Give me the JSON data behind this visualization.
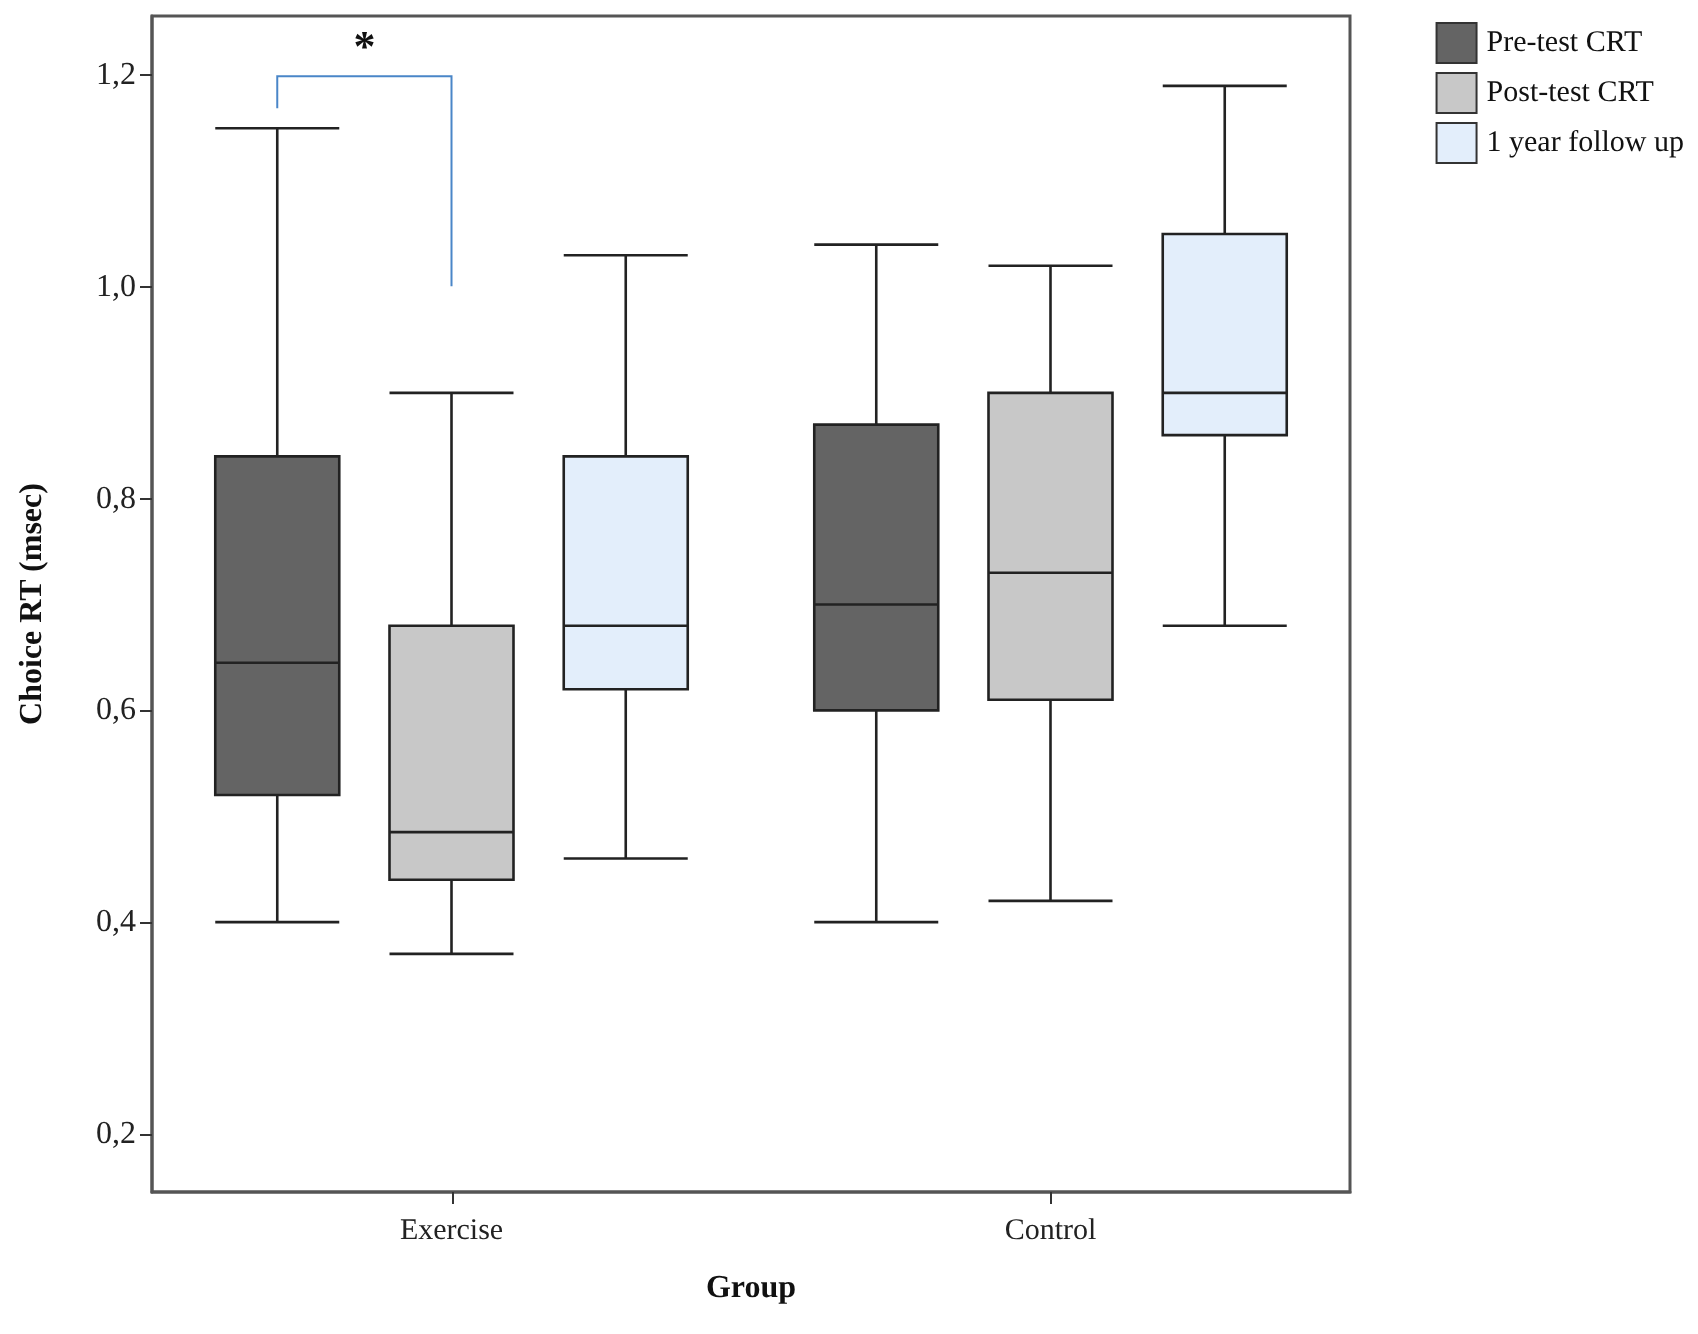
{
  "chart_data": {
    "type": "box",
    "xlabel": "Group",
    "ylabel": "Choice RT (msec)",
    "categories": [
      "Exercise",
      "Control"
    ],
    "series": [
      {
        "name": "Pre-test CRT",
        "color": "#646464",
        "boxes": [
          {
            "low": 0.4,
            "q1": 0.52,
            "median": 0.645,
            "q3": 0.84,
            "high": 1.15
          },
          {
            "low": 0.4,
            "q1": 0.6,
            "median": 0.7,
            "q3": 0.87,
            "high": 1.04
          }
        ]
      },
      {
        "name": "Post-test CRT",
        "color": "#c8c8c8",
        "boxes": [
          {
            "low": 0.37,
            "q1": 0.44,
            "median": 0.485,
            "q3": 0.68,
            "high": 0.9
          },
          {
            "low": 0.42,
            "q1": 0.61,
            "median": 0.73,
            "q3": 0.9,
            "high": 1.02
          }
        ]
      },
      {
        "name": "1 year follow up",
        "color": "#e3eefb",
        "boxes": [
          {
            "low": 0.46,
            "q1": 0.62,
            "median": 0.68,
            "q3": 0.84,
            "high": 1.03
          },
          {
            "low": 0.68,
            "q1": 0.86,
            "median": 0.9,
            "q3": 1.05,
            "high": 1.19
          }
        ]
      }
    ],
    "ylim": [
      0.145,
      1.256
    ],
    "yticks": [
      {
        "value": 0.2,
        "label": "0,2"
      },
      {
        "value": 0.4,
        "label": "0,4"
      },
      {
        "value": 0.6,
        "label": "0,6"
      },
      {
        "value": 0.8,
        "label": "0,8"
      },
      {
        "value": 1.0,
        "label": "1,0"
      },
      {
        "value": 1.2,
        "label": "1,2"
      }
    ],
    "grid": false,
    "legend": "top right",
    "annotations": [
      "*"
    ]
  }
}
